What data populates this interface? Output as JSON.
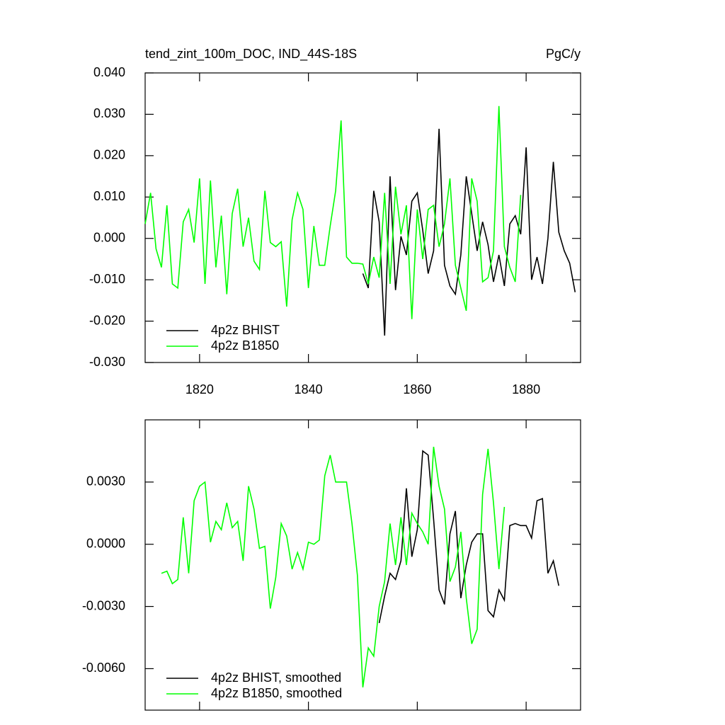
{
  "chart_data": [
    {
      "type": "line",
      "title": "tend_zint_100m_DOC, IND_44S-18S",
      "right_title": "PgC/y",
      "x": [
        1810,
        1811,
        1812,
        1813,
        1814,
        1815,
        1816,
        1817,
        1818,
        1819,
        1820,
        1821,
        1822,
        1823,
        1824,
        1825,
        1826,
        1827,
        1828,
        1829,
        1830,
        1831,
        1832,
        1833,
        1834,
        1835,
        1836,
        1837,
        1838,
        1839,
        1840,
        1841,
        1842,
        1843,
        1844,
        1845,
        1846,
        1847,
        1848,
        1849,
        1850,
        1851,
        1852,
        1853,
        1854,
        1855,
        1856,
        1857,
        1858,
        1859,
        1860,
        1861,
        1862,
        1863,
        1864,
        1865,
        1866,
        1867,
        1868,
        1869,
        1870,
        1871,
        1872,
        1873,
        1874,
        1875,
        1876,
        1877,
        1878,
        1879,
        1880,
        1881,
        1882,
        1883,
        1884,
        1885,
        1886,
        1887,
        1888,
        1889
      ],
      "series": [
        {
          "name": "4p2z BHIST",
          "color": "#000000",
          "values": [
            null,
            null,
            null,
            null,
            null,
            null,
            null,
            null,
            null,
            null,
            null,
            null,
            null,
            null,
            null,
            null,
            null,
            null,
            null,
            null,
            null,
            null,
            null,
            null,
            null,
            null,
            null,
            null,
            null,
            null,
            null,
            null,
            null,
            null,
            null,
            null,
            null,
            null,
            null,
            null,
            -0.0085,
            -0.012,
            0.0115,
            0.004,
            -0.0235,
            0.015,
            -0.0125,
            0.0005,
            -0.004,
            0.009,
            0.011,
            0.002,
            -0.0085,
            -0.003,
            0.0265,
            -0.0065,
            -0.0115,
            -0.0135,
            -0.004,
            0.015,
            0.006,
            -0.003,
            0.004,
            -0.0015,
            -0.0105,
            -0.004,
            -0.0115,
            0.0035,
            0.0055,
            0.001,
            0.022,
            -0.01,
            -0.0045,
            -0.011,
            0.0,
            0.0185,
            0.0015,
            -0.003,
            -0.006,
            -0.013
          ]
        },
        {
          "name": "4p2z B1850",
          "color": "#00ff00",
          "values": [
            0.0035,
            0.011,
            -0.0025,
            -0.007,
            0.008,
            -0.011,
            -0.012,
            0.004,
            0.007,
            -0.001,
            0.0145,
            -0.011,
            0.014,
            -0.007,
            0.0055,
            -0.0135,
            0.006,
            0.012,
            -0.002,
            0.005,
            -0.0055,
            -0.0075,
            0.0115,
            -0.001,
            -0.002,
            -0.0008,
            -0.0165,
            0.0045,
            0.011,
            0.007,
            -0.012,
            0.003,
            -0.0065,
            -0.0065,
            0.003,
            0.0115,
            0.0285,
            -0.0045,
            -0.006,
            -0.006,
            -0.0062,
            -0.011,
            -0.0045,
            -0.0095,
            0.011,
            -0.011,
            0.0125,
            0.001,
            0.008,
            -0.0195,
            0.007,
            -0.005,
            0.007,
            0.008,
            -0.002,
            0.0035,
            0.0145,
            -0.0065,
            -0.012,
            -0.0175,
            0.0145,
            0.009,
            -0.0105,
            -0.0095,
            -0.003,
            0.032,
            -0.002,
            -0.007,
            -0.0105,
            0.0105,
            null,
            null,
            null,
            null,
            null,
            null,
            null,
            null,
            null,
            null
          ]
        }
      ],
      "xlim": [
        1810,
        1890
      ],
      "xticks": [
        1820,
        1840,
        1860,
        1880
      ],
      "show_xtick_labels": true,
      "ylim": [
        -0.03,
        0.04
      ],
      "yticks": [
        {
          "value": -0.03,
          "label": "-0.030"
        },
        {
          "value": -0.02,
          "label": "-0.020"
        },
        {
          "value": -0.01,
          "label": "-0.010"
        },
        {
          "value": 0,
          "label": "0.000"
        },
        {
          "value": 0.01,
          "label": "0.010"
        },
        {
          "value": 0.02,
          "label": "0.020"
        },
        {
          "value": 0.03,
          "label": "0.030"
        },
        {
          "value": 0.04,
          "label": "0.040"
        }
      ],
      "legend": "lower left"
    },
    {
      "type": "line",
      "x": [
        1810,
        1811,
        1812,
        1813,
        1814,
        1815,
        1816,
        1817,
        1818,
        1819,
        1820,
        1821,
        1822,
        1823,
        1824,
        1825,
        1826,
        1827,
        1828,
        1829,
        1830,
        1831,
        1832,
        1833,
        1834,
        1835,
        1836,
        1837,
        1838,
        1839,
        1840,
        1841,
        1842,
        1843,
        1844,
        1845,
        1846,
        1847,
        1848,
        1849,
        1850,
        1851,
        1852,
        1853,
        1854,
        1855,
        1856,
        1857,
        1858,
        1859,
        1860,
        1861,
        1862,
        1863,
        1864,
        1865,
        1866,
        1867,
        1868,
        1869,
        1870,
        1871,
        1872,
        1873,
        1874,
        1875,
        1876,
        1877,
        1878,
        1879,
        1880,
        1881,
        1882,
        1883,
        1884,
        1885,
        1886,
        1887,
        1888,
        1889
      ],
      "series": [
        {
          "name": "4p2z BHIST, smoothed",
          "color": "#000000",
          "values": [
            null,
            null,
            null,
            null,
            null,
            null,
            null,
            null,
            null,
            null,
            null,
            null,
            null,
            null,
            null,
            null,
            null,
            null,
            null,
            null,
            null,
            null,
            null,
            null,
            null,
            null,
            null,
            null,
            null,
            null,
            null,
            null,
            null,
            null,
            null,
            null,
            null,
            null,
            null,
            null,
            null,
            null,
            null,
            -0.0038,
            -0.0025,
            -0.0014,
            -0.0017,
            -0.0008,
            0.0027,
            -0.0006,
            0.0007,
            0.0045,
            0.0043,
            0.0012,
            -0.0022,
            -0.0029,
            0.0005,
            0.0016,
            -0.0026,
            -0.001,
            0.0001,
            0.0005,
            0.0005,
            -0.0032,
            -0.0035,
            -0.0022,
            -0.0027,
            0.0009,
            0.001,
            0.0009,
            0.0009,
            0.0003,
            0.0021,
            0.0022,
            -0.0014,
            -0.0008,
            -0.002,
            null,
            null,
            null
          ]
        },
        {
          "name": "4p2z B1850, smoothed",
          "color": "#00ff00",
          "values": [
            null,
            null,
            null,
            -0.0014,
            -0.0013,
            -0.0019,
            -0.0017,
            0.0013,
            -0.0014,
            0.0021,
            0.0028,
            0.003,
            0.0001,
            0.0011,
            0.0007,
            0.002,
            0.0008,
            0.0011,
            -0.0008,
            0.0028,
            0.0017,
            -0.0002,
            -0.0001,
            -0.0031,
            -0.0016,
            0.001,
            0.0004,
            -0.0012,
            -0.0004,
            -0.0012,
            0.0001,
            0.0,
            0.0002,
            0.0033,
            0.0043,
            0.003,
            0.003,
            0.003,
            0.001,
            -0.0015,
            -0.0069,
            -0.005,
            -0.0054,
            -0.003,
            -0.0018,
            0.001,
            -0.001,
            0.0013,
            -0.001,
            0.0015,
            0.001,
            0.0006,
            0.0,
            0.0047,
            0.0028,
            0.0017,
            -0.0018,
            -0.0011,
            0.0006,
            -0.0026,
            -0.0048,
            -0.0041,
            0.0024,
            0.0046,
            0.002,
            -0.0012,
            0.0018,
            null,
            null,
            null,
            null,
            null,
            null,
            null,
            null,
            null,
            null,
            null,
            null,
            null
          ]
        }
      ],
      "xlim": [
        1810,
        1890
      ],
      "xticks": [
        1820,
        1840,
        1860,
        1880
      ],
      "show_xtick_labels": false,
      "ylim": [
        -0.008,
        0.006
      ],
      "yticks": [
        {
          "value": -0.006,
          "label": "-0.0060"
        },
        {
          "value": -0.003,
          "label": "-0.0030"
        },
        {
          "value": 0,
          "label": "0.0000"
        },
        {
          "value": 0.003,
          "label": "0.0030"
        }
      ],
      "legend": "lower left"
    }
  ]
}
